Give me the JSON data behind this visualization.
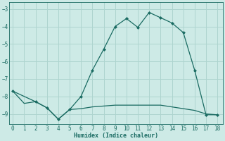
{
  "xlabel": "Humidex (Indice chaleur)",
  "ylabel": "",
  "background_color": "#cdeae6",
  "grid_color": "#aed4cf",
  "line_color": "#1a6b62",
  "line1_x": [
    0,
    1,
    2,
    3,
    4,
    5,
    6,
    7,
    8,
    9,
    10,
    11,
    12,
    13,
    14,
    15,
    16,
    17,
    18
  ],
  "line1_y": [
    -7.7,
    -8.4,
    -8.3,
    -8.65,
    -9.3,
    -8.75,
    -8.7,
    -8.6,
    -8.55,
    -8.5,
    -8.5,
    -8.5,
    -8.5,
    -8.5,
    -8.6,
    -8.7,
    -8.8,
    -9.0,
    -9.05
  ],
  "line2_x": [
    0,
    2,
    3,
    4,
    5,
    6,
    7,
    8,
    9,
    10,
    11,
    12,
    13,
    14,
    15,
    16,
    17,
    18
  ],
  "line2_y": [
    -7.7,
    -8.3,
    -8.65,
    -9.3,
    -8.75,
    -8.0,
    -6.5,
    -5.3,
    -4.0,
    -3.55,
    -4.05,
    -3.2,
    -3.5,
    -3.8,
    -4.35,
    -6.5,
    -9.05,
    -9.05
  ],
  "ylim": [
    -9.6,
    -2.6
  ],
  "xlim": [
    -0.3,
    18.5
  ],
  "yticks": [
    -9,
    -8,
    -7,
    -6,
    -5,
    -4,
    -3
  ],
  "xticks": [
    0,
    1,
    2,
    3,
    4,
    5,
    6,
    7,
    8,
    9,
    10,
    11,
    12,
    13,
    14,
    15,
    16,
    17,
    18
  ]
}
